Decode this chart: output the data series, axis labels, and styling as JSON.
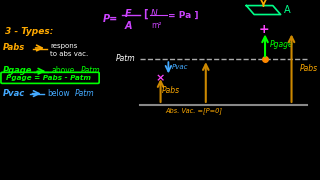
{
  "bg_color": "#000000",
  "title_color": "#cc44ff",
  "types_color": "#ffaa00",
  "types_text": "3 - Types:",
  "pabs_color": "#ffaa00",
  "pabs_text": "Pabs",
  "pabs_desc_color": "#ffffff",
  "pgage_color": "#00ff00",
  "pgage_text": "Pgage",
  "pvac_color": "#44aaff",
  "pvac_text": "Pvac",
  "patm_color": "#ffffff",
  "patm_text": "Patm",
  "abs_vac_text": "Abs. Vac. =[P=0]",
  "arrow_color_gage": "#00ff00",
  "arrow_color_abs": "#cc8800",
  "arrow_color_pvac": "#44aaff",
  "magenta_color": "#ff44ff"
}
